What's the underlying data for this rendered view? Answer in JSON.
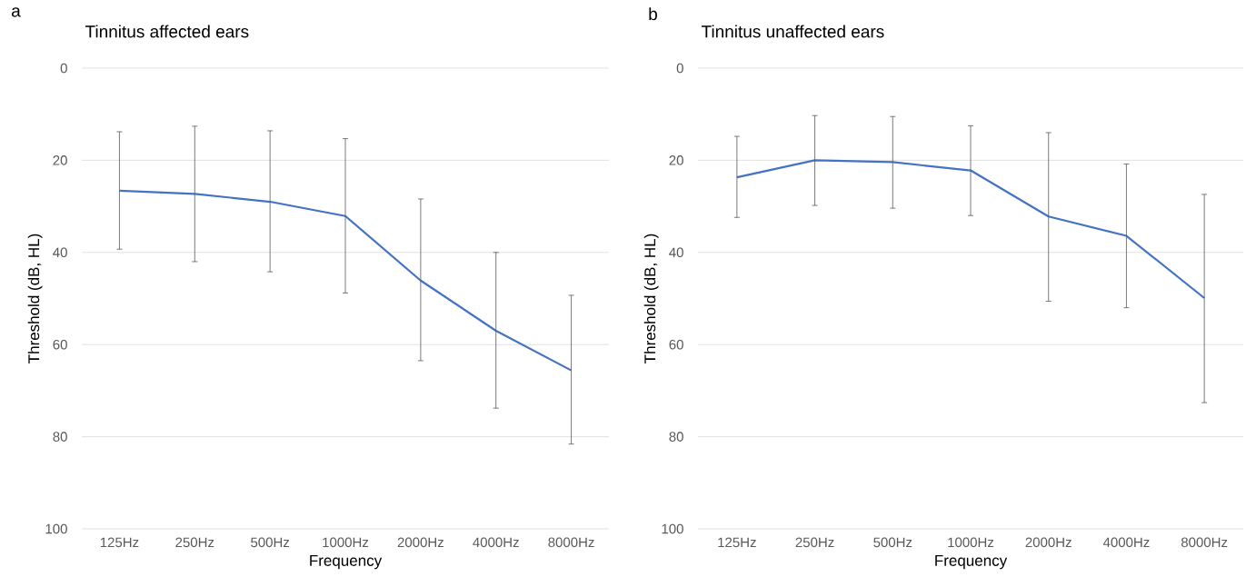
{
  "chart_data": [
    {
      "type": "line",
      "title": "Tinnitus affected ears",
      "xlabel": "Frequency",
      "ylabel": "Threshold (dB, HL)",
      "annotations": [
        "a"
      ],
      "categories": [
        "125Hz",
        "250Hz",
        "500Hz",
        "1000Hz",
        "2000Hz",
        "4000Hz",
        "8000Hz"
      ],
      "series": [
        {
          "color": "#4472c4",
          "values": [
            26.6,
            27.3,
            29.0,
            32.1,
            46.1,
            57.0,
            65.6
          ],
          "errors": [
            [
              13.8,
              39.3
            ],
            [
              12.6,
              42.0
            ],
            [
              13.6,
              44.2
            ],
            [
              15.3,
              48.8
            ],
            [
              28.4,
              63.5
            ],
            [
              40.0,
              73.8
            ],
            [
              49.3,
              81.6
            ]
          ]
        }
      ],
      "ylim": [
        100,
        0
      ],
      "yticks": [
        0,
        20,
        40,
        60,
        80,
        100
      ],
      "grid": "y"
    },
    {
      "type": "line",
      "title": "Tinnitus unaffected ears",
      "xlabel": "Frequency",
      "ylabel": "Threshold (dB, HL)",
      "annotations": [
        "b"
      ],
      "categories": [
        "125Hz",
        "250Hz",
        "500Hz",
        "1000Hz",
        "2000Hz",
        "4000Hz",
        "8000Hz"
      ],
      "series": [
        {
          "color": "#4472c4",
          "values": [
            23.7,
            20.0,
            20.4,
            22.2,
            32.2,
            36.4,
            49.9
          ],
          "errors": [
            [
              14.8,
              32.4
            ],
            [
              10.3,
              29.8
            ],
            [
              10.5,
              30.4
            ],
            [
              12.5,
              32.0
            ],
            [
              14.0,
              50.6
            ],
            [
              20.8,
              52.0
            ],
            [
              27.4,
              72.6
            ]
          ]
        }
      ],
      "ylim": [
        100,
        0
      ],
      "yticks": [
        0,
        20,
        40,
        60,
        80,
        100
      ],
      "grid": "y"
    }
  ]
}
